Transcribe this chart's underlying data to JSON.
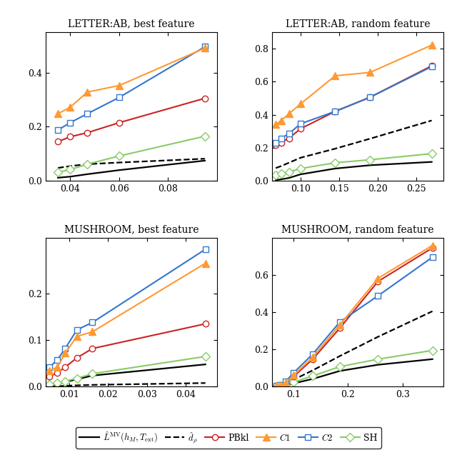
{
  "subplots": [
    {
      "title_parts": [
        "L",
        "ETTER",
        ":AB, best feature"
      ],
      "title": "LETTER:AB, best feature",
      "xlim": [
        0.03,
        0.1
      ],
      "ylim": [
        0,
        0.55
      ],
      "xticks": [
        0.04,
        0.06,
        0.08
      ],
      "yticks": [
        0.0,
        0.2,
        0.4
      ],
      "series": {
        "LMV": {
          "x": [
            0.035,
            0.04,
            0.047,
            0.06,
            0.095
          ],
          "y": [
            0.012,
            0.016,
            0.025,
            0.04,
            0.075
          ]
        },
        "d_rho": {
          "x": [
            0.035,
            0.04,
            0.047,
            0.06,
            0.095
          ],
          "y": [
            0.048,
            0.055,
            0.062,
            0.068,
            0.082
          ]
        },
        "PBkl": {
          "x": [
            0.035,
            0.04,
            0.047,
            0.06,
            0.095
          ],
          "y": [
            0.145,
            0.163,
            0.178,
            0.215,
            0.305
          ]
        },
        "C1": {
          "x": [
            0.035,
            0.04,
            0.047,
            0.06,
            0.095
          ],
          "y": [
            0.248,
            0.272,
            0.328,
            0.352,
            0.49
          ]
        },
        "C2": {
          "x": [
            0.035,
            0.04,
            0.047,
            0.06,
            0.095
          ],
          "y": [
            0.188,
            0.215,
            0.248,
            0.308,
            0.495
          ]
        },
        "SH": {
          "x": [
            0.035,
            0.04,
            0.047,
            0.06,
            0.095
          ],
          "y": [
            0.032,
            0.042,
            0.062,
            0.092,
            0.165
          ]
        }
      }
    },
    {
      "title": "LETTER:AB, random feature",
      "xlim": [
        0.063,
        0.285
      ],
      "ylim": [
        0,
        0.9
      ],
      "xticks": [
        0.1,
        0.15,
        0.2,
        0.25
      ],
      "yticks": [
        0.0,
        0.2,
        0.4,
        0.6,
        0.8
      ],
      "series": {
        "LMV": {
          "x": [
            0.068,
            0.075,
            0.085,
            0.1,
            0.145,
            0.19,
            0.27
          ],
          "y": [
            0.005,
            0.01,
            0.018,
            0.04,
            0.075,
            0.095,
            0.115
          ]
        },
        "d_rho": {
          "x": [
            0.068,
            0.075,
            0.085,
            0.1,
            0.145,
            0.19,
            0.27
          ],
          "y": [
            0.078,
            0.09,
            0.11,
            0.14,
            0.195,
            0.255,
            0.365
          ]
        },
        "PBkl": {
          "x": [
            0.068,
            0.075,
            0.085,
            0.1,
            0.145,
            0.19,
            0.27
          ],
          "y": [
            0.215,
            0.232,
            0.258,
            0.315,
            0.42,
            0.505,
            0.695
          ]
        },
        "C1": {
          "x": [
            0.068,
            0.075,
            0.085,
            0.1,
            0.145,
            0.19,
            0.27
          ],
          "y": [
            0.34,
            0.365,
            0.405,
            0.465,
            0.635,
            0.655,
            0.82
          ]
        },
        "C2": {
          "x": [
            0.068,
            0.075,
            0.085,
            0.1,
            0.145,
            0.19,
            0.27
          ],
          "y": [
            0.228,
            0.258,
            0.285,
            0.345,
            0.42,
            0.505,
            0.69
          ]
        },
        "SH": {
          "x": [
            0.068,
            0.075,
            0.085,
            0.1,
            0.145,
            0.19,
            0.27
          ],
          "y": [
            0.038,
            0.045,
            0.055,
            0.075,
            0.11,
            0.128,
            0.165
          ]
        }
      }
    },
    {
      "title": "MUSHROOM, best feature",
      "xlim": [
        0.004,
        0.048
      ],
      "ylim": [
        0,
        0.32
      ],
      "xticks": [
        0.01,
        0.02,
        0.03,
        0.04
      ],
      "yticks": [
        0.0,
        0.1,
        0.2
      ],
      "series": {
        "LMV": {
          "x": [
            0.005,
            0.007,
            0.009,
            0.012,
            0.016,
            0.045
          ],
          "y": [
            0.003,
            0.006,
            0.01,
            0.016,
            0.024,
            0.048
          ]
        },
        "d_rho": {
          "x": [
            0.005,
            0.007,
            0.009,
            0.012,
            0.016,
            0.045
          ],
          "y": [
            0.001,
            0.001,
            0.002,
            0.003,
            0.004,
            0.008
          ]
        },
        "PBkl": {
          "x": [
            0.005,
            0.007,
            0.009,
            0.012,
            0.016,
            0.045
          ],
          "y": [
            0.022,
            0.03,
            0.042,
            0.062,
            0.082,
            0.135
          ]
        },
        "C1": {
          "x": [
            0.005,
            0.007,
            0.009,
            0.012,
            0.016,
            0.045
          ],
          "y": [
            0.035,
            0.042,
            0.072,
            0.108,
            0.118,
            0.265
          ]
        },
        "C2": {
          "x": [
            0.005,
            0.007,
            0.009,
            0.012,
            0.016,
            0.045
          ],
          "y": [
            0.042,
            0.058,
            0.082,
            0.122,
            0.138,
            0.295
          ]
        },
        "SH": {
          "x": [
            0.005,
            0.007,
            0.009,
            0.012,
            0.016,
            0.045
          ],
          "y": [
            0.005,
            0.008,
            0.012,
            0.018,
            0.028,
            0.065
          ]
        }
      }
    },
    {
      "title": "MUSHROOM, random feature",
      "xlim": [
        0.06,
        0.375
      ],
      "ylim": [
        0,
        0.8
      ],
      "xticks": [
        0.1,
        0.2,
        0.3
      ],
      "yticks": [
        0.0,
        0.2,
        0.4,
        0.6
      ],
      "series": {
        "LMV": {
          "x": [
            0.068,
            0.075,
            0.085,
            0.1,
            0.135,
            0.185,
            0.255,
            0.355
          ],
          "y": [
            0.002,
            0.004,
            0.008,
            0.018,
            0.042,
            0.085,
            0.118,
            0.148
          ]
        },
        "d_rho": {
          "x": [
            0.068,
            0.075,
            0.085,
            0.1,
            0.135,
            0.185,
            0.255,
            0.355
          ],
          "y": [
            0.002,
            0.005,
            0.015,
            0.038,
            0.088,
            0.165,
            0.268,
            0.405
          ]
        },
        "PBkl": {
          "x": [
            0.068,
            0.075,
            0.085,
            0.1,
            0.135,
            0.185,
            0.255,
            0.355
          ],
          "y": [
            0.005,
            0.008,
            0.02,
            0.055,
            0.148,
            0.315,
            0.565,
            0.745
          ]
        },
        "C1": {
          "x": [
            0.068,
            0.075,
            0.085,
            0.1,
            0.135,
            0.185,
            0.255,
            0.355
          ],
          "y": [
            0.005,
            0.008,
            0.022,
            0.062,
            0.158,
            0.332,
            0.582,
            0.758
          ]
        },
        "C2": {
          "x": [
            0.068,
            0.075,
            0.085,
            0.1,
            0.135,
            0.185,
            0.255,
            0.355
          ],
          "y": [
            0.005,
            0.01,
            0.028,
            0.075,
            0.175,
            0.348,
            0.488,
            0.695
          ]
        },
        "SH": {
          "x": [
            0.068,
            0.075,
            0.085,
            0.1,
            0.135,
            0.185,
            0.255,
            0.355
          ],
          "y": [
            0.002,
            0.004,
            0.01,
            0.025,
            0.058,
            0.108,
            0.148,
            0.195
          ]
        }
      }
    }
  ],
  "colors": {
    "LMV": "#000000",
    "d_rho": "#000000",
    "PBkl": "#cc2222",
    "C1": "#ff9933",
    "C2": "#3377cc",
    "SH": "#88cc66"
  }
}
